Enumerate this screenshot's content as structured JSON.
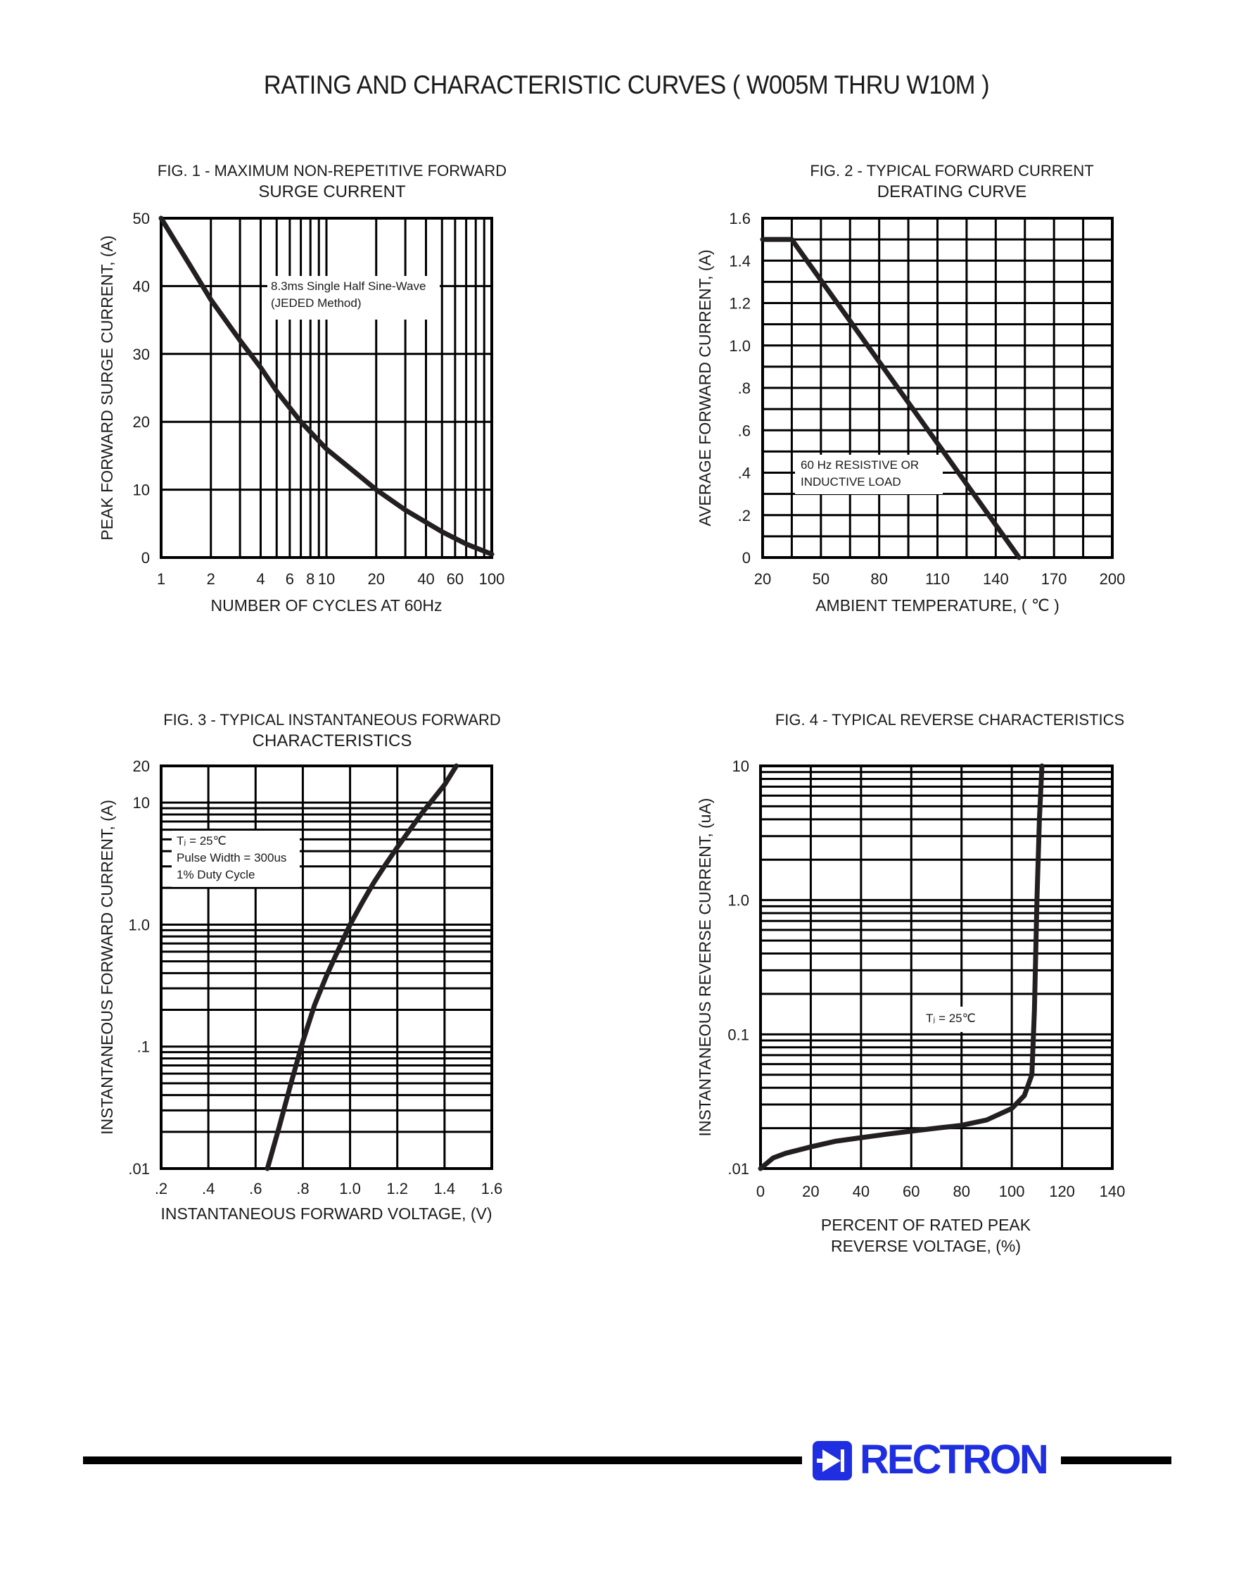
{
  "page": {
    "title": "RATING AND CHARACTERISTIC CURVES ( W005M THRU W10M )",
    "brand": "RECTRON",
    "brand_color": "#1f2ee0"
  },
  "chart_data": [
    {
      "type": "line",
      "title": "FIG. 1 - MAXIMUM NON-REPETITIVE FORWARD",
      "subtitle": "SURGE CURRENT",
      "xlabel": "NUMBER OF CYCLES AT 60Hz",
      "ylabel": "PEAK FORWARD SURGE CURRENT, (A)",
      "x_scale": "log",
      "xlim": [
        1,
        100
      ],
      "ylim": [
        0,
        50
      ],
      "x_ticks": [
        "1",
        "2",
        "4",
        "6",
        "8",
        "10",
        "20",
        "40",
        "60",
        "100"
      ],
      "y_ticks": [
        "0",
        "10",
        "20",
        "30",
        "40",
        "50"
      ],
      "annotation": [
        "8.3ms Single Half Sine-Wave",
        "(JEDED Method)"
      ],
      "grid": true,
      "series": [
        {
          "x": [
            1,
            1.5,
            2,
            3,
            4,
            5,
            7,
            10,
            15,
            20,
            30,
            50,
            70,
            100
          ],
          "y": [
            50,
            43,
            38,
            32,
            28,
            24.5,
            20,
            16,
            12.5,
            10,
            7,
            3.8,
            2,
            0.5
          ]
        }
      ]
    },
    {
      "type": "line",
      "title": "FIG. 2 - TYPICAL FORWARD CURRENT",
      "subtitle": "DERATING CURVE",
      "xlabel": "AMBIENT TEMPERATURE, ( ℃ )",
      "ylabel": "AVERAGE FORWARD CURRENT, (A)",
      "xlim": [
        20,
        200
      ],
      "ylim": [
        0,
        1.6
      ],
      "x_ticks": [
        "20",
        "50",
        "80",
        "110",
        "140",
        "170",
        "200"
      ],
      "y_ticks": [
        "0",
        ".2",
        ".4",
        ".6",
        ".8",
        "1.0",
        "1.2",
        "1.4",
        "1.6"
      ],
      "annotation": [
        "60 Hz RESISTIVE OR",
        "INDUCTIVE LOAD"
      ],
      "grid": true,
      "series": [
        {
          "x": [
            20,
            35,
            152
          ],
          "y": [
            1.5,
            1.5,
            0
          ]
        }
      ]
    },
    {
      "type": "line",
      "title": "FIG. 3 - TYPICAL INSTANTANEOUS FORWARD",
      "subtitle": "CHARACTERISTICS",
      "xlabel": "INSTANTANEOUS FORWARD VOLTAGE, (V)",
      "ylabel": "INSTANTANEOUS FORWARD CURRENT, (A)",
      "y_scale": "log",
      "xlim": [
        0.2,
        1.6
      ],
      "ylim": [
        0.01,
        20
      ],
      "x_ticks": [
        ".2",
        ".4",
        ".6",
        ".8",
        "1.0",
        "1.2",
        "1.4",
        "1.6"
      ],
      "y_ticks": [
        ".01",
        ".1",
        "1.0",
        "10",
        "20"
      ],
      "annotation": [
        "Tⱼ = 25℃",
        "Pulse Width = 300us",
        "1% Duty Cycle"
      ],
      "grid": true,
      "series": [
        {
          "x": [
            0.65,
            0.7,
            0.75,
            0.8,
            0.85,
            0.9,
            0.95,
            1.0,
            1.05,
            1.1,
            1.15,
            1.2,
            1.3,
            1.4,
            1.45
          ],
          "y": [
            0.01,
            0.022,
            0.05,
            0.11,
            0.22,
            0.38,
            0.62,
            1.0,
            1.5,
            2.2,
            3.1,
            4.3,
            8,
            14,
            20
          ]
        }
      ]
    },
    {
      "type": "line",
      "title": "FIG. 4 - TYPICAL REVERSE CHARACTERISTICS",
      "subtitle": "",
      "xlabel_lines": [
        "PERCENT OF RATED PEAK",
        "REVERSE VOLTAGE, (%)"
      ],
      "ylabel": "INSTANTANEOUS REVERSE CURRENT, (uA)",
      "y_scale": "log",
      "xlim": [
        0,
        140
      ],
      "ylim": [
        0.01,
        10
      ],
      "x_ticks": [
        "0",
        "20",
        "40",
        "60",
        "80",
        "100",
        "120",
        "140"
      ],
      "y_ticks": [
        ".01",
        "0.1",
        "1.0",
        "10"
      ],
      "annotation": [
        "Tⱼ = 25℃"
      ],
      "grid": true,
      "series": [
        {
          "x": [
            0,
            5,
            10,
            20,
            30,
            40,
            50,
            60,
            70,
            80,
            90,
            100,
            105,
            108,
            109,
            110,
            111,
            112
          ],
          "y": [
            0.01,
            0.012,
            0.013,
            0.0145,
            0.016,
            0.017,
            0.018,
            0.019,
            0.02,
            0.021,
            0.023,
            0.028,
            0.035,
            0.05,
            0.15,
            1.0,
            4.0,
            10
          ]
        }
      ]
    }
  ]
}
